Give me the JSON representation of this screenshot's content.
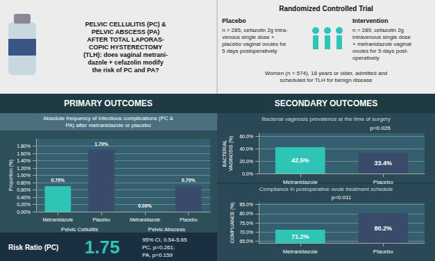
{
  "chart_data": [
    {
      "type": "bar",
      "title": "PRIMARY OUTCOMES",
      "subtitle": "Absolute frequency of infectious complications (PC &\nPA) after metranidazole or placebo",
      "annotations": [
        "PELVIC CELLULITIS (PC) &\nPELVIC ABSCESS (PA)\nAFTER TOTAL LAPORAS-\nCOPIC HYSTERECTOMY\n(TLH): does vaginal metrani-\ndazole + cefazolin modify\nthe risk of PC and PA?",
        "Randomized Controlled Trial",
        "Placebo",
        "n = 285, cefazolin 2g intra-\nvenous single dose +\nplacebo vaginal ovules for\n5 days postoperatively",
        "Intervention",
        "n = 289, cefazolin 2g\nintravenous single dose\n+ metranidazole vaginal\novules for 5 days post-\noperatively",
        "Women (n = 574), 18 years or older, admitted and\nscheduled for TLH for benign disease",
        "Risk Ratio (PC)",
        "1.75",
        "95% CI, 0.54-5.65\nPC, p=0.261;\nPA, p=0.159"
      ],
      "categories": [
        "Metranidazole",
        "Placebo",
        "Metranidazole",
        "Placebo"
      ],
      "group_labels": [
        "Pelvic Cellulitis",
        "Pelvic Abscess"
      ],
      "values": [
        0.7,
        1.7,
        0.0,
        0.7
      ],
      "value_labels": [
        "0.70%",
        "1.70%",
        "0.00%",
        "0.70%"
      ],
      "colors": [
        "#2ec4b6",
        "#3a4a6b",
        "#3a4a6b",
        "#3a4a6b"
      ],
      "ylabel": "Proportion (%)",
      "ylim": [
        0,
        2.0
      ],
      "yticks": [
        {
          "value": 0.0,
          "label": "0.00%"
        },
        {
          "value": 0.2,
          "label": "0.20%"
        },
        {
          "value": 0.4,
          "label": "0.40%"
        },
        {
          "value": 0.6,
          "label": "0.60%"
        },
        {
          "value": 0.8,
          "label": "0.80%"
        },
        {
          "value": 1.0,
          "label": "1.00%"
        },
        {
          "value": 1.2,
          "label": "1.20%"
        },
        {
          "value": 1.4,
          "label": "1.40%"
        },
        {
          "value": 1.6,
          "label": "1.60%"
        },
        {
          "value": 1.8,
          "label": "1.80%"
        }
      ],
      "data_labels": true,
      "grid": true
    },
    {
      "type": "bar",
      "title": "SECONDARY OUTCOMES",
      "subtitle": "Bacterial vaginosis prevalence at the time of surgery",
      "annotations": [
        "p=0.026"
      ],
      "categories": [
        "Metranidazole",
        "Placebo"
      ],
      "values": [
        42.5,
        33.4
      ],
      "value_labels": [
        "42.5%",
        "33.4%"
      ],
      "colors": [
        "#2ec4b6",
        "#3a4a6b"
      ],
      "ylabel": "BACTERIAL\nVAGINOSIS (%)",
      "ylim": [
        0,
        65
      ],
      "yticks": [
        {
          "value": 0.0,
          "label": "0.0%"
        },
        {
          "value": 20.0,
          "label": "20.0%"
        },
        {
          "value": 40.0,
          "label": "40.0%"
        },
        {
          "value": 60.0,
          "label": "60.0%"
        }
      ],
      "data_labels": true,
      "grid": true
    },
    {
      "type": "bar",
      "subtitle": "Compliance in postoperative ovule treatment schedule",
      "annotations": [
        "p=0.011"
      ],
      "categories": [
        "Metranidazole",
        "Placebo"
      ],
      "values": [
        71.2,
        80.2
      ],
      "value_labels": [
        "71.2%",
        "80.2%"
      ],
      "colors": [
        "#2ec4b6",
        "#3a4a6b"
      ],
      "ylabel": "COMPLIANCE (%)",
      "ylim": [
        64,
        86
      ],
      "yticks": [
        {
          "value": 65.0,
          "label": "65.0%"
        },
        {
          "value": 70.0,
          "label": "70.0%"
        },
        {
          "value": 75.0,
          "label": "75.0%"
        },
        {
          "value": 80.0,
          "label": "80.0%"
        },
        {
          "value": 85.0,
          "label": "85.0%"
        }
      ],
      "data_labels": true,
      "grid": true
    }
  ]
}
